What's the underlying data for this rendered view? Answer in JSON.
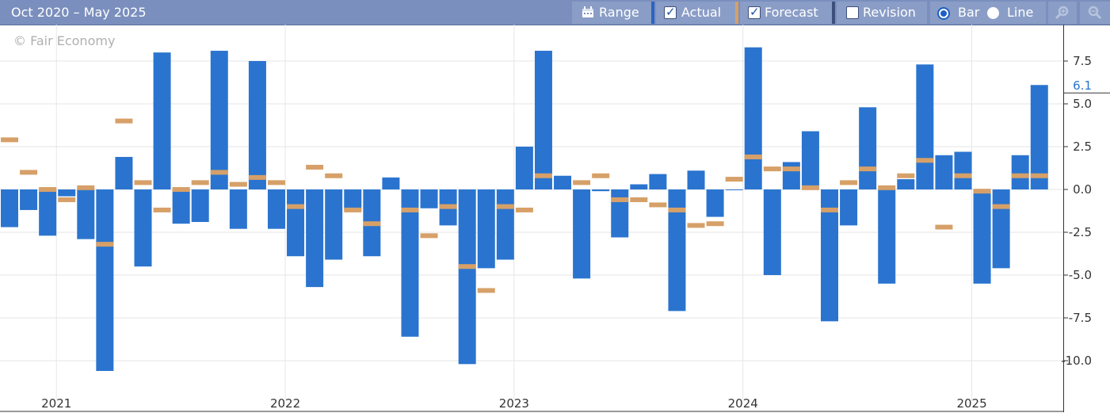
{
  "header": {
    "range_title": "Oct 2020 – May 2025",
    "range_button": "Range",
    "actual_label": "Actual",
    "forecast_label": "Forecast",
    "revision_label": "Revision",
    "bar_label": "Bar",
    "line_label": "Line",
    "zoom_in_icon": "zoom-in-icon",
    "zoom_out_icon": "zoom-out-icon",
    "calendar_icon": "calendar-icon"
  },
  "colors": {
    "actual": "#2a74cf",
    "forecast": "#d6a068",
    "header": "#7a8fbd"
  },
  "chart_data": {
    "type": "bar",
    "watermark": "© Fair Economy",
    "ylim": [
      -11.5,
      9.8
    ],
    "yticks": [
      7.5,
      5.0,
      2.5,
      0.0,
      -2.5,
      -5.0,
      -7.5,
      -10.0
    ],
    "ytick_labels": [
      "7.5",
      "5.0",
      "2.5",
      "0.0",
      "-2.5",
      "-5.0",
      "-7.5",
      "-10.0"
    ],
    "last_value_label": "6.1",
    "last_value": 6.1,
    "year_labels": [
      {
        "label": "2021",
        "index": 3
      },
      {
        "label": "2022",
        "index": 15
      },
      {
        "label": "2023",
        "index": 27
      },
      {
        "label": "2024",
        "index": 39
      },
      {
        "label": "2025",
        "index": 51
      }
    ],
    "series": [
      {
        "name": "Actual",
        "values": [
          -2.2,
          -1.2,
          -2.7,
          -0.4,
          -2.9,
          -10.6,
          1.9,
          -4.5,
          8.0,
          -2.0,
          -1.9,
          8.1,
          -2.3,
          7.5,
          -2.3,
          -3.9,
          -5.7,
          -4.1,
          -1.2,
          -3.9,
          0.7,
          -8.6,
          -1.1,
          -2.1,
          -10.2,
          -4.6,
          -4.1,
          2.5,
          8.1,
          0.8,
          -5.2,
          -0.1,
          -2.8,
          0.3,
          0.9,
          -7.1,
          1.1,
          -1.6,
          0.0,
          8.3,
          -5.0,
          1.6,
          3.4,
          -7.7,
          -2.1,
          4.8,
          -5.5,
          0.6,
          7.3,
          2.0,
          2.2,
          -5.5,
          -4.6,
          2.0,
          6.1
        ]
      },
      {
        "name": "Forecast",
        "values": [
          2.9,
          1.0,
          0.0,
          -0.6,
          0.1,
          -3.2,
          4.0,
          0.4,
          -1.2,
          0.0,
          0.4,
          1.0,
          0.3,
          0.7,
          0.4,
          -1.0,
          1.3,
          0.8,
          -1.2,
          -2.0,
          null,
          -1.2,
          -2.7,
          -1.0,
          -4.5,
          -5.9,
          -1.0,
          -1.2,
          0.8,
          null,
          0.4,
          0.8,
          -0.6,
          -0.6,
          -0.9,
          -1.2,
          -2.1,
          -2.0,
          0.6,
          1.9,
          1.2,
          1.2,
          0.1,
          -1.2,
          0.4,
          1.2,
          0.1,
          0.8,
          1.7,
          -2.2,
          0.8,
          -0.1,
          -1.0,
          0.8,
          0.8
        ]
      }
    ]
  }
}
